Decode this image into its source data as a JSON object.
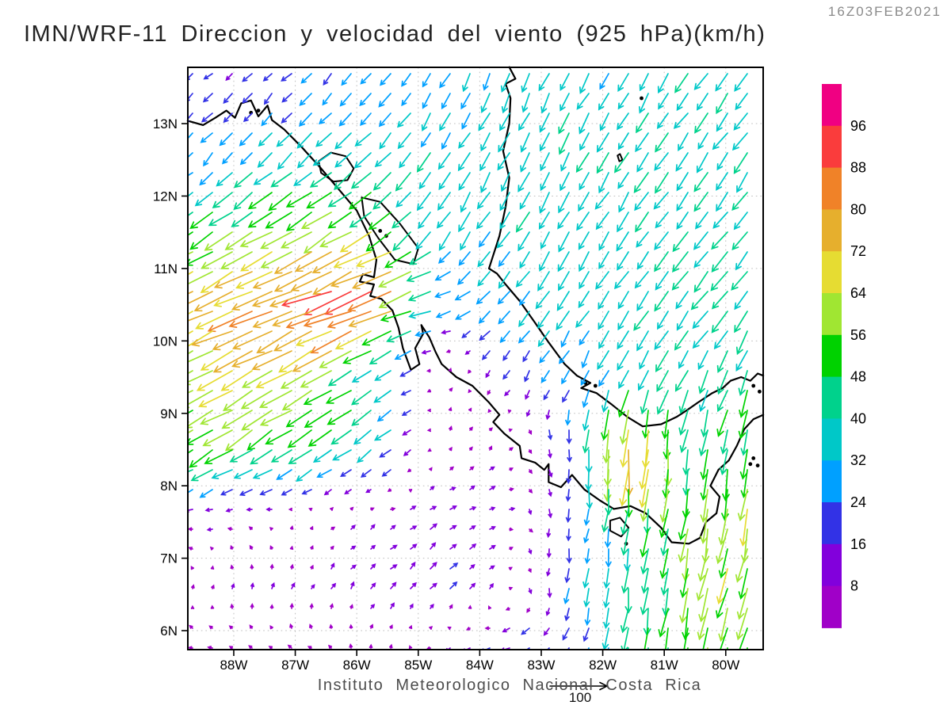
{
  "header": {
    "timestamp": "16Z03FEB2021",
    "title": "IMN/WRF-11 Direccion y velocidad del viento (925 hPa)(km/h)"
  },
  "footer": {
    "credit": "Instituto Meteorologico Nacional Costa Rica",
    "reference_value": "100"
  },
  "chart_data": {
    "type": "vector-field",
    "title": "IMN/WRF-11 Direccion y velocidad del viento (925 hPa)(km/h)",
    "valid_time": "16Z03FEB2021",
    "level": "925 hPa",
    "units": "km/h",
    "reference_vector": 100,
    "x_tick_labels": [
      "88W",
      "87W",
      "86W",
      "85W",
      "84W",
      "83W",
      "82W",
      "81W",
      "80W"
    ],
    "x_tick_lons_w": [
      88,
      87,
      86,
      85,
      84,
      83,
      82,
      81,
      80
    ],
    "y_tick_labels": [
      "13N",
      "12N",
      "11N",
      "10N",
      "9N",
      "8N",
      "7N",
      "6N"
    ],
    "y_tick_lats_n": [
      13,
      12,
      11,
      10,
      9,
      8,
      7,
      6
    ],
    "lon_w_range": [
      88.747,
      79.39
    ],
    "lat_n_range": [
      5.738,
      13.777
    ],
    "grid": "dotted-gray-1deg",
    "colorbar": {
      "position": "right",
      "levels": [
        8,
        16,
        24,
        32,
        40,
        48,
        56,
        64,
        72,
        80,
        88,
        96
      ],
      "colors": [
        "#a000c8",
        "#8200dc",
        "#3232e6",
        "#00a0ff",
        "#00c8c8",
        "#00d28c",
        "#00d200",
        "#a0e632",
        "#e6dc32",
        "#e6af2d",
        "#f08228",
        "#fa3c3c",
        "#f00082"
      ]
    },
    "wind_grid": {
      "comment_units": "u=eastward km/h, v=northward km/h, rows=lats_n order, cols=lons_w order",
      "lons_w": [
        88.6,
        87.6,
        86.6,
        85.6,
        84.6,
        83.6,
        82.6,
        81.6,
        80.6,
        79.5
      ],
      "lats_n": [
        13.6,
        12.6,
        11.6,
        10.6,
        9.6,
        8.6,
        7.6,
        6.6,
        5.8
      ],
      "u": [
        [
          -12,
          -14,
          -16,
          -18,
          -15,
          -12,
          -15,
          -18,
          -20,
          -22
        ],
        [
          -18,
          -22,
          -28,
          -25,
          -20,
          -18,
          -16,
          -20,
          -20,
          -22
        ],
        [
          -38,
          -45,
          -52,
          -45,
          -20,
          -20,
          -18,
          -20,
          -22,
          -24
        ],
        [
          -68,
          -75,
          -82,
          -90,
          -32,
          -18,
          -20,
          -22,
          -24,
          -26
        ],
        [
          -55,
          -60,
          -58,
          -32,
          3,
          -10,
          -12,
          -15,
          -18,
          -15
        ],
        [
          -48,
          -48,
          -42,
          -30,
          3,
          5,
          2,
          -5,
          -5,
          -10
        ],
        [
          -10,
          -6,
          4,
          8,
          10,
          8,
          -2,
          -5,
          -8,
          -12
        ],
        [
          2,
          3,
          5,
          8,
          12,
          5,
          -3,
          -5,
          -10,
          -15
        ],
        [
          -6,
          -5,
          -4,
          2,
          -6,
          -18,
          -15,
          -8,
          -10,
          -12
        ]
      ],
      "v": [
        [
          -10,
          -14,
          -16,
          -20,
          -25,
          -30,
          -32,
          -30,
          -30,
          -32
        ],
        [
          -18,
          -22,
          -26,
          -28,
          -30,
          -32,
          -34,
          -32,
          -32,
          -34
        ],
        [
          -26,
          -30,
          -32,
          -30,
          -30,
          -30,
          -32,
          -30,
          -30,
          -32
        ],
        [
          -30,
          -32,
          -33,
          -36,
          -10,
          -22,
          -30,
          -30,
          -32,
          -34
        ],
        [
          -30,
          -32,
          -33,
          -22,
          4,
          -14,
          -22,
          -30,
          -35,
          -40
        ],
        [
          -30,
          -30,
          -28,
          -22,
          5,
          5,
          -20,
          -82,
          -45,
          -50
        ],
        [
          -2,
          2,
          4,
          5,
          6,
          2,
          -18,
          -40,
          -55,
          -60
        ],
        [
          6,
          8,
          8,
          10,
          12,
          5,
          -22,
          -45,
          -55,
          -58
        ],
        [
          2,
          3,
          4,
          6,
          -4,
          -6,
          -15,
          -40,
          -50,
          -55
        ]
      ]
    },
    "map": {
      "coastlines": [
        [
          [
            88.75,
            13.04
          ],
          [
            88.5,
            12.98
          ],
          [
            88.3,
            13.08
          ],
          [
            88.12,
            13.18
          ],
          [
            87.98,
            13.08
          ],
          [
            87.88,
            13.28
          ],
          [
            87.72,
            13.32
          ],
          [
            87.6,
            13.1
          ],
          [
            87.45,
            13.25
          ],
          [
            87.38,
            13.05
          ],
          [
            87.18,
            12.92
          ],
          [
            86.9,
            12.68
          ],
          [
            86.6,
            12.4
          ],
          [
            86.3,
            12.1
          ],
          [
            86.0,
            11.8
          ],
          [
            85.8,
            11.45
          ],
          [
            85.68,
            11.12
          ],
          [
            85.72,
            10.88
          ],
          [
            85.9,
            10.92
          ],
          [
            85.95,
            10.82
          ],
          [
            85.72,
            10.78
          ],
          [
            85.78,
            10.62
          ],
          [
            85.6,
            10.58
          ],
          [
            85.42,
            10.42
          ],
          [
            85.32,
            10.18
          ],
          [
            85.25,
            9.9
          ],
          [
            85.12,
            9.6
          ],
          [
            84.98,
            9.68
          ],
          [
            85.05,
            9.9
          ],
          [
            84.92,
            10.1
          ],
          [
            84.95,
            10.22
          ],
          [
            84.82,
            10.05
          ],
          [
            84.72,
            9.85
          ],
          [
            84.62,
            9.68
          ],
          [
            84.38,
            9.5
          ],
          [
            84.12,
            9.38
          ],
          [
            83.85,
            9.15
          ],
          [
            83.68,
            8.98
          ],
          [
            83.78,
            8.88
          ],
          [
            83.6,
            8.72
          ],
          [
            83.35,
            8.55
          ],
          [
            83.32,
            8.38
          ],
          [
            83.1,
            8.32
          ],
          [
            82.95,
            8.22
          ],
          [
            82.88,
            8.3
          ],
          [
            82.88,
            8.05
          ],
          [
            82.68,
            7.98
          ],
          [
            82.5,
            8.15
          ],
          [
            82.3,
            7.95
          ],
          [
            82.05,
            7.8
          ],
          [
            81.82,
            7.68
          ],
          [
            81.55,
            7.72
          ],
          [
            81.3,
            7.62
          ],
          [
            81.05,
            7.42
          ],
          [
            80.88,
            7.22
          ],
          [
            80.6,
            7.2
          ],
          [
            80.42,
            7.28
          ],
          [
            80.32,
            7.5
          ],
          [
            80.15,
            7.62
          ],
          [
            80.1,
            7.85
          ],
          [
            80.25,
            8.0
          ],
          [
            80.12,
            8.22
          ],
          [
            79.95,
            8.35
          ],
          [
            79.82,
            8.55
          ],
          [
            79.7,
            8.78
          ],
          [
            79.55,
            8.92
          ],
          [
            79.39,
            8.98
          ]
        ],
        [
          [
            83.52,
            13.78
          ],
          [
            83.42,
            13.62
          ],
          [
            83.58,
            13.55
          ],
          [
            83.5,
            13.35
          ],
          [
            83.52,
            13.0
          ],
          [
            83.62,
            12.62
          ],
          [
            83.52,
            12.25
          ],
          [
            83.58,
            11.85
          ],
          [
            83.68,
            11.45
          ],
          [
            83.85,
            11.0
          ],
          [
            83.72,
            10.93
          ],
          [
            83.58,
            10.78
          ],
          [
            83.35,
            10.55
          ],
          [
            83.1,
            10.25
          ],
          [
            82.88,
            9.98
          ],
          [
            82.62,
            9.68
          ],
          [
            82.42,
            9.52
          ],
          [
            82.2,
            9.42
          ],
          [
            82.35,
            9.35
          ],
          [
            82.1,
            9.28
          ],
          [
            81.85,
            9.12
          ],
          [
            81.6,
            8.95
          ],
          [
            81.35,
            8.82
          ],
          [
            81.05,
            8.85
          ],
          [
            80.8,
            8.95
          ],
          [
            80.62,
            9.05
          ],
          [
            80.45,
            9.15
          ],
          [
            80.22,
            9.28
          ],
          [
            80.05,
            9.35
          ],
          [
            79.92,
            9.45
          ],
          [
            79.75,
            9.5
          ],
          [
            79.6,
            9.45
          ],
          [
            79.48,
            9.55
          ],
          [
            79.39,
            9.52
          ]
        ]
      ],
      "lakes": [
        [
          [
            86.62,
            12.48
          ],
          [
            86.42,
            12.6
          ],
          [
            86.18,
            12.55
          ],
          [
            86.05,
            12.38
          ],
          [
            86.15,
            12.22
          ],
          [
            86.38,
            12.2
          ],
          [
            86.58,
            12.32
          ]
        ],
        [
          [
            85.92,
            11.98
          ],
          [
            85.62,
            11.92
          ],
          [
            85.3,
            11.62
          ],
          [
            85.0,
            11.28
          ],
          [
            85.08,
            11.06
          ],
          [
            85.38,
            11.12
          ],
          [
            85.65,
            11.42
          ],
          [
            85.88,
            11.72
          ]
        ],
        [
          [
            81.88,
            7.52
          ],
          [
            81.72,
            7.56
          ],
          [
            81.58,
            7.42
          ],
          [
            81.7,
            7.3
          ],
          [
            81.88,
            7.38
          ]
        ],
        [
          [
            81.72,
            12.58
          ],
          [
            81.68,
            12.5
          ],
          [
            81.73,
            12.48
          ],
          [
            81.76,
            12.56
          ]
        ]
      ],
      "islets": [
        [
          85.62,
          11.52
        ],
        [
          85.52,
          11.45
        ],
        [
          81.37,
          13.35
        ],
        [
          81.62,
          7.2
        ],
        [
          79.55,
          8.38
        ],
        [
          79.48,
          8.28
        ],
        [
          79.6,
          8.3
        ],
        [
          82.28,
          9.42
        ],
        [
          82.12,
          9.38
        ],
        [
          87.72,
          13.15
        ],
        [
          87.6,
          13.18
        ],
        [
          79.55,
          9.38
        ],
        [
          79.45,
          9.3
        ]
      ]
    }
  }
}
